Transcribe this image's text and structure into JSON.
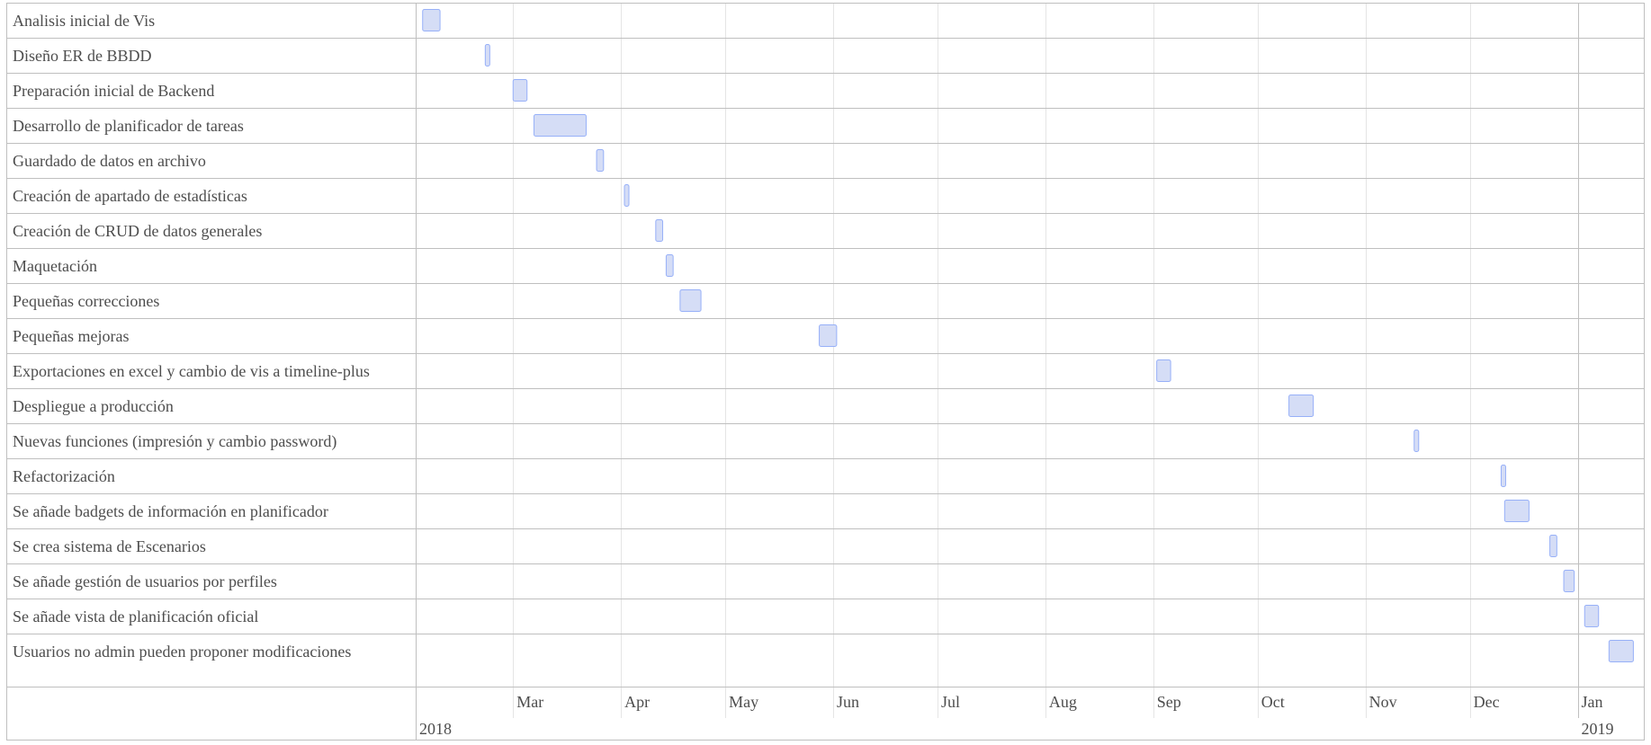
{
  "chart_data": {
    "type": "timeline",
    "title": "",
    "tasks": [
      {
        "label": "Analisis inicial de Vis",
        "start": "2018-02-03",
        "end": "2018-02-08"
      },
      {
        "label": "Diseño ER de BBDD",
        "start": "2018-02-21",
        "end": "2018-02-22"
      },
      {
        "label": "Preparación inicial de Backend",
        "start": "2018-03-01",
        "end": "2018-03-05"
      },
      {
        "label": "Desarrollo de planificador de tareas",
        "start": "2018-03-07",
        "end": "2018-03-22"
      },
      {
        "label": "Guardado de datos en archivo",
        "start": "2018-03-25",
        "end": "2018-03-27"
      },
      {
        "label": "Creación de apartado de estadísticas",
        "start": "2018-04-02",
        "end": "2018-04-03"
      },
      {
        "label": "Creación de CRUD de datos generales",
        "start": "2018-04-11",
        "end": "2018-04-13"
      },
      {
        "label": "Maquetación",
        "start": "2018-04-14",
        "end": "2018-04-16"
      },
      {
        "label": "Pequeñas correcciones",
        "start": "2018-04-18",
        "end": "2018-04-24"
      },
      {
        "label": "Pequeñas mejoras",
        "start": "2018-05-28",
        "end": "2018-06-02"
      },
      {
        "label": "Exportaciones en excel y cambio de vis a timeline-plus",
        "start": "2018-09-02",
        "end": "2018-09-06"
      },
      {
        "label": "Despliegue a producción",
        "start": "2018-10-10",
        "end": "2018-10-17"
      },
      {
        "label": "Nuevas funciones (impresión y cambio password)",
        "start": "2018-11-15",
        "end": "2018-11-16"
      },
      {
        "label": "Refactorización",
        "start": "2018-12-10",
        "end": "2018-12-11"
      },
      {
        "label": "Se añade badgets de información en planificador",
        "start": "2018-12-11",
        "end": "2018-12-18"
      },
      {
        "label": "Se crea sistema de Escenarios",
        "start": "2018-12-24",
        "end": "2018-12-26"
      },
      {
        "label": "Se añade gestión de usuarios por perfiles",
        "start": "2018-12-28",
        "end": "2018-12-31"
      },
      {
        "label": "Se añade vista de planificación oficial",
        "start": "2019-01-03",
        "end": "2019-01-07"
      },
      {
        "label": "Usuarios no admin pueden proponer modificaciones",
        "start": "2019-01-10",
        "end": "2019-01-17"
      }
    ],
    "x_axis": {
      "range": [
        "2018-02-01",
        "2019-01-20"
      ],
      "month_ticks": [
        {
          "date": "2018-03-01",
          "label": "Mar"
        },
        {
          "date": "2018-04-01",
          "label": "Apr"
        },
        {
          "date": "2018-05-01",
          "label": "May"
        },
        {
          "date": "2018-06-01",
          "label": "Jun"
        },
        {
          "date": "2018-07-01",
          "label": "Jul"
        },
        {
          "date": "2018-08-01",
          "label": "Aug"
        },
        {
          "date": "2018-09-01",
          "label": "Sep"
        },
        {
          "date": "2018-10-01",
          "label": "Oct"
        },
        {
          "date": "2018-11-01",
          "label": "Nov"
        },
        {
          "date": "2018-12-01",
          "label": "Dec"
        },
        {
          "date": "2019-01-01",
          "label": "Jan"
        }
      ],
      "year_ticks": [
        {
          "date": "2018-02-01",
          "label": "2018"
        },
        {
          "date": "2019-01-01",
          "label": "2019"
        }
      ]
    },
    "colors": {
      "item_fill": "#d5ddf6",
      "item_border": "#97b0f8",
      "grid_minor": "#e5e5e5",
      "grid_major": "#bfbfbf",
      "text": "#4d4d4d"
    }
  }
}
